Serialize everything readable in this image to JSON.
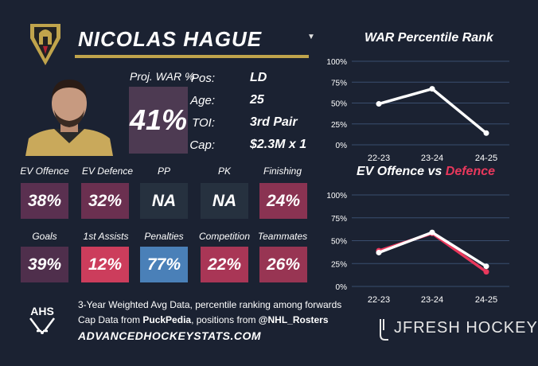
{
  "header": {
    "player_name": "NICOLAS HAGUE",
    "dropdown_icon": "caret-down"
  },
  "colors": {
    "background": "#1b2232",
    "gold": "#c0a44c",
    "proj_war": "#4d3a52",
    "ev_offence": "#5a3050",
    "ev_defence": "#6b3050",
    "na": "#26313f",
    "finishing": "#8a3352",
    "goals": "#4f2f4c",
    "first_assists": "#cc3d5c",
    "penalties": "#4a80b8",
    "competition": "#a93656",
    "teammates": "#983553",
    "offence_line": "#ffffff",
    "defence_line": "#e8385c"
  },
  "proj_war": {
    "label": "Proj. WAR %",
    "value": "41%"
  },
  "info": [
    {
      "label": "Pos:",
      "value": "LD"
    },
    {
      "label": "Age:",
      "value": "25"
    },
    {
      "label": "TOI:",
      "value": "3rd Pair"
    },
    {
      "label": "Cap:",
      "value": "$2.3M x 1"
    }
  ],
  "stats_row1": [
    {
      "label": "EV Offence",
      "value": "38%"
    },
    {
      "label": "EV Defence",
      "value": "32%"
    },
    {
      "label": "PP",
      "value": "NA"
    },
    {
      "label": "PK",
      "value": "NA"
    },
    {
      "label": "Finishing",
      "value": "24%"
    }
  ],
  "stats_row2": [
    {
      "label": "Goals",
      "value": "39%"
    },
    {
      "label": "1st Assists",
      "value": "12%"
    },
    {
      "label": "Penalties",
      "value": "77%"
    },
    {
      "label": "Competition",
      "value": "22%"
    },
    {
      "label": "Teammates",
      "value": "26%"
    }
  ],
  "footer": {
    "line1": "3-Year Weighted Avg Data, percentile ranking among forwards",
    "line2_pre": "Cap Data from ",
    "line2_source": "PuckPedia",
    "line2_mid": ", positions from ",
    "line2_handle": "@NHL_Rosters",
    "url": "ADVANCEDHOCKEYSTATS.COM",
    "ahs_logo_text": "AHS",
    "brand": "JFRESH HOCKEY"
  },
  "chart_data": [
    {
      "type": "line",
      "title": "WAR Percentile Rank",
      "x": [
        "22-23",
        "23-24",
        "24-25"
      ],
      "yticks": [
        "100%",
        "75%",
        "50%",
        "25%",
        "0%"
      ],
      "ylim": [
        0,
        100
      ],
      "grid": true,
      "series": [
        {
          "values": [
            49,
            67,
            14
          ]
        }
      ]
    },
    {
      "type": "line",
      "title_part1": "EV Offence vs ",
      "title_part2": "Defence",
      "x": [
        "22-23",
        "23-24",
        "24-25"
      ],
      "yticks": [
        "100%",
        "75%",
        "50%",
        "25%",
        "0%"
      ],
      "ylim": [
        0,
        100
      ],
      "grid": true,
      "series": [
        {
          "values": [
            39,
            58,
            16
          ]
        },
        {
          "values": [
            37,
            59,
            22
          ]
        }
      ]
    }
  ]
}
